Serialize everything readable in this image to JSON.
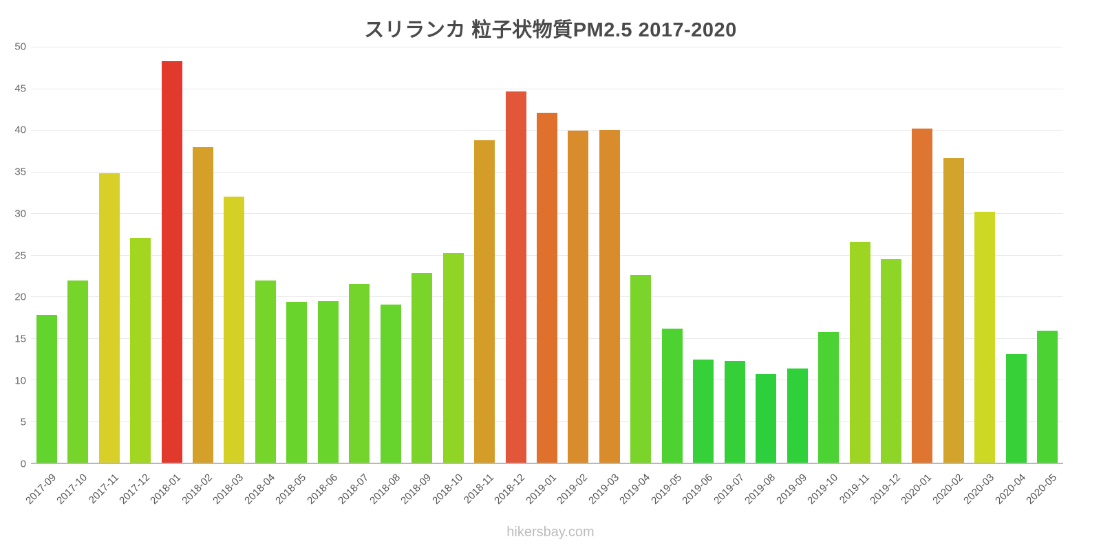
{
  "title": "スリランカ 粒子状物質PM2.5 2017-2020",
  "footer": "hikersbay.com",
  "chart_data": {
    "type": "bar",
    "title": "スリランカ 粒子状物質PM2.5 2017-2020",
    "xlabel": "",
    "ylabel": "",
    "ylim": [
      0,
      50
    ],
    "yticks": [
      0,
      5,
      10,
      15,
      20,
      25,
      30,
      35,
      40,
      45,
      50
    ],
    "grid": true,
    "legend": false,
    "categories": [
      "2017-09",
      "2017-10",
      "2017-11",
      "2017-12",
      "2018-01",
      "2018-02",
      "2018-03",
      "2018-04",
      "2018-05",
      "2018-06",
      "2018-07",
      "2018-08",
      "2018-09",
      "2018-10",
      "2018-11",
      "2018-12",
      "2019-01",
      "2019-02",
      "2019-03",
      "2019-04",
      "2019-05",
      "2019-06",
      "2019-07",
      "2019-08",
      "2019-09",
      "2019-10",
      "2019-11",
      "2019-12",
      "2020-01",
      "2020-02",
      "2020-03",
      "2020-04",
      "2020-05"
    ],
    "values": [
      17.8,
      21.9,
      34.8,
      27.0,
      48.3,
      37.9,
      32.0,
      21.9,
      19.3,
      19.4,
      21.5,
      19.0,
      22.8,
      25.2,
      38.8,
      44.6,
      42.1,
      39.9,
      40.0,
      22.6,
      16.1,
      12.4,
      12.2,
      10.7,
      11.3,
      15.7,
      26.5,
      24.5,
      40.2,
      36.6,
      30.2,
      13.1,
      15.9
    ],
    "colors": [
      "#63d32e",
      "#76d42a",
      "#d8cf28",
      "#a2d621",
      "#e2392d",
      "#d4a02a",
      "#d4d026",
      "#76d42a",
      "#69d42c",
      "#69d42c",
      "#74d42b",
      "#67d42d",
      "#7bd429",
      "#90d525",
      "#d49d28",
      "#e25639",
      "#e0712c",
      "#d98c2b",
      "#d98c2b",
      "#7ad429",
      "#4ed232",
      "#36d039",
      "#35d039",
      "#2dcf3c",
      "#30d03b",
      "#4bd233",
      "#9ed522",
      "#8dd526",
      "#de7530",
      "#d2a42c",
      "#cdd824",
      "#38d038",
      "#4cd233"
    ],
    "axis_color": "#b8b8b8",
    "gridline_color": "#e9e9e9",
    "tick_label_color": "#666666",
    "title_color": "#4a4a4a",
    "footer_color": "#bcbcbc"
  }
}
